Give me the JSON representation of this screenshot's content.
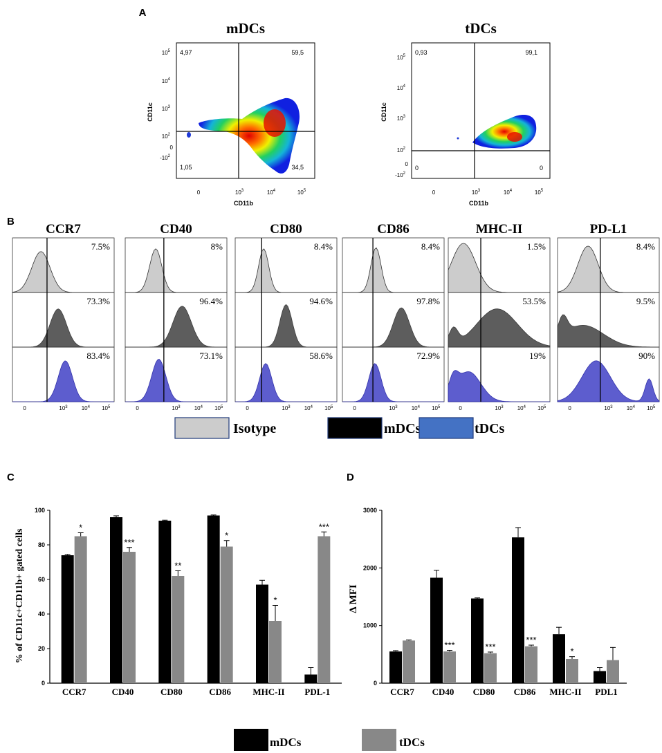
{
  "panel_labels": {
    "a": "A",
    "b": "B",
    "c": "C",
    "d": "D"
  },
  "colors": {
    "isotype": "#cccccc",
    "mdc": "#555555",
    "tdc": "#5555cc",
    "bar_mdc": "#000000",
    "bar_tdc": "#888888",
    "legend_tdc": "#4472c4"
  },
  "chart_data": [
    {
      "panel": "A",
      "type": "scatter",
      "subtype": "flow-cytometry-density",
      "plots": [
        {
          "title": "mDCs",
          "xlabel": "CD11b",
          "ylabel": "CD11c",
          "quadrants": {
            "tl": "4,97",
            "tr": "59,5",
            "bl": "1,05",
            "br": "34,5"
          }
        },
        {
          "title": "tDCs",
          "xlabel": "CD11b",
          "ylabel": "CD11c",
          "quadrants": {
            "tl": "0,93",
            "tr": "99,1",
            "bl": "0",
            "br": "0"
          }
        }
      ],
      "x_ticks": [
        "0",
        "10",
        "10",
        "10"
      ],
      "x_tick_exps": [
        "",
        "3",
        "4",
        "5"
      ],
      "y_ticks": [
        "-10",
        "0",
        "10",
        "10",
        "10",
        "10"
      ],
      "y_tick_exps": [
        "2",
        "",
        "2",
        "3",
        "4",
        "5"
      ]
    },
    {
      "panel": "B",
      "type": "area",
      "subtype": "flow-histograms",
      "markers": [
        {
          "name": "CCR7",
          "iso": "7.5%",
          "mdc": "73.3%",
          "tdc": "83.4%"
        },
        {
          "name": "CD40",
          "iso": "8%",
          "mdc": "96.4%",
          "tdc": "73.1%"
        },
        {
          "name": "CD80",
          "iso": "8.4%",
          "mdc": "94.6%",
          "tdc": "58.6%"
        },
        {
          "name": "CD86",
          "iso": "8.4%",
          "mdc": "97.8%",
          "tdc": "72.9%"
        },
        {
          "name": "MHC-II",
          "iso": "1.5%",
          "mdc": "53.5%",
          "tdc": "19%"
        },
        {
          "name": "PD-L1",
          "iso": "8.4%",
          "mdc": "9.5%",
          "tdc": "90%"
        }
      ],
      "x_ticks": [
        "0",
        "10",
        "10",
        "10"
      ],
      "x_tick_exps": [
        "",
        "3",
        "4",
        "5"
      ],
      "legend": [
        "Isotype",
        "mDCs",
        "tDCs"
      ]
    },
    {
      "panel": "C",
      "type": "bar",
      "categories": [
        "CCR7",
        "CD40",
        "CD80",
        "CD86",
        "MHC-II",
        "PDL-1"
      ],
      "series": [
        {
          "name": "mDCs",
          "values": [
            74,
            96,
            94,
            97,
            57,
            5
          ],
          "errors": [
            0.5,
            0.8,
            0.3,
            0.3,
            2.5,
            4
          ]
        },
        {
          "name": "tDCs",
          "values": [
            85,
            76,
            62,
            79,
            36,
            85
          ],
          "errors": [
            2,
            2.5,
            3,
            3.5,
            9,
            2.5
          ]
        }
      ],
      "significance": [
        "*",
        "***",
        "**",
        "*",
        "*",
        "***"
      ],
      "ylabel": "% of CD11c+CD11b+ gated cells",
      "ylim": [
        0,
        100
      ],
      "yticks": [
        0,
        20,
        40,
        60,
        80,
        100
      ]
    },
    {
      "panel": "D",
      "type": "bar",
      "categories": [
        "CCR7",
        "CD40",
        "CD80",
        "CD86",
        "MHC-II",
        "PDL1"
      ],
      "series": [
        {
          "name": "mDCs",
          "values": [
            550,
            1830,
            1470,
            2530,
            850,
            210
          ],
          "errors": [
            15,
            130,
            10,
            170,
            120,
            60
          ]
        },
        {
          "name": "tDCs",
          "values": [
            740,
            550,
            520,
            640,
            420,
            400
          ],
          "errors": [
            10,
            20,
            20,
            20,
            40,
            220
          ]
        }
      ],
      "significance": [
        "",
        "***",
        "***",
        "***",
        "*",
        ""
      ],
      "ylabel": "Δ MFI",
      "ylim": [
        0,
        3000
      ],
      "yticks": [
        0,
        1000,
        2000,
        3000
      ]
    }
  ],
  "bottom_legend": {
    "mdc": "mDCs",
    "tdc": "tDCs"
  }
}
